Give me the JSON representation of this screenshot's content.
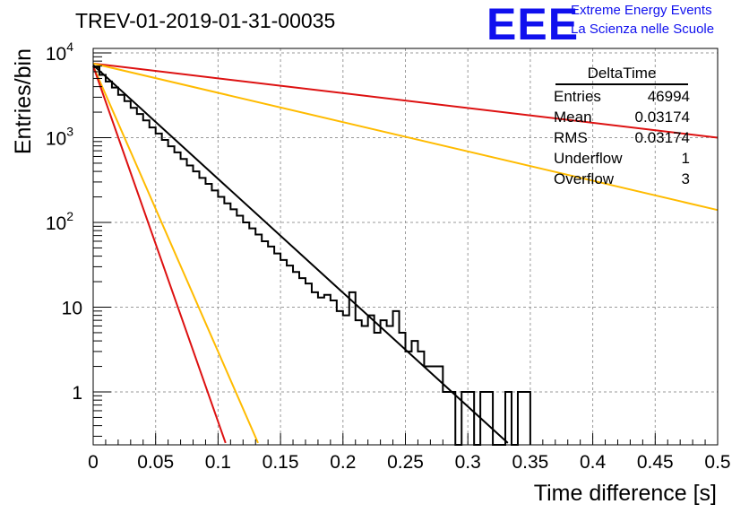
{
  "chart_data": {
    "type": "histogram",
    "title": "TREV-01-2019-01-31-00035",
    "xlabel": "Time difference [s]",
    "ylabel": "Entries/bin",
    "xlim": [
      0,
      0.5
    ],
    "ylim": [
      0.25,
      12000
    ],
    "yscale": "log",
    "grid": true,
    "legend": "none",
    "x_ticks": [
      "0",
      "0.05",
      "0.1",
      "0.15",
      "0.2",
      "0.25",
      "0.3",
      "0.35",
      "0.4",
      "0.45",
      "0.5"
    ],
    "y_ticks": [
      {
        "value": 1,
        "base": "1",
        "exp": ""
      },
      {
        "value": 10,
        "base": "10",
        "exp": ""
      },
      {
        "value": 100,
        "base": "10",
        "exp": "2"
      },
      {
        "value": 1000,
        "base": "10",
        "exp": "3"
      },
      {
        "value": 10000,
        "base": "10",
        "exp": "4"
      }
    ],
    "histogram": {
      "color": "#000000",
      "bin_width": 0.005,
      "bins": [
        [
          0.0,
          6800
        ],
        [
          0.005,
          5500
        ],
        [
          0.01,
          4600
        ],
        [
          0.015,
          3900
        ],
        [
          0.02,
          3200
        ],
        [
          0.025,
          2700
        ],
        [
          0.03,
          2250
        ],
        [
          0.035,
          1900
        ],
        [
          0.04,
          1600
        ],
        [
          0.045,
          1320
        ],
        [
          0.05,
          1120
        ],
        [
          0.055,
          940
        ],
        [
          0.06,
          790
        ],
        [
          0.065,
          670
        ],
        [
          0.07,
          560
        ],
        [
          0.075,
          470
        ],
        [
          0.08,
          400
        ],
        [
          0.085,
          335
        ],
        [
          0.09,
          285
        ],
        [
          0.095,
          238
        ],
        [
          0.1,
          200
        ],
        [
          0.105,
          168
        ],
        [
          0.11,
          143
        ],
        [
          0.115,
          120
        ],
        [
          0.12,
          100
        ],
        [
          0.125,
          85
        ],
        [
          0.13,
          72
        ],
        [
          0.135,
          60
        ],
        [
          0.14,
          52
        ],
        [
          0.145,
          43
        ],
        [
          0.15,
          36
        ],
        [
          0.155,
          31
        ],
        [
          0.16,
          26
        ],
        [
          0.165,
          22
        ],
        [
          0.17,
          19
        ],
        [
          0.175,
          15
        ],
        [
          0.18,
          13
        ],
        [
          0.185,
          14
        ],
        [
          0.19,
          12
        ],
        [
          0.195,
          9
        ],
        [
          0.2,
          8
        ],
        [
          0.205,
          15
        ],
        [
          0.21,
          7
        ],
        [
          0.215,
          6
        ],
        [
          0.22,
          8
        ],
        [
          0.225,
          5
        ],
        [
          0.23,
          7
        ],
        [
          0.235,
          6
        ],
        [
          0.24,
          9
        ],
        [
          0.245,
          5
        ],
        [
          0.25,
          3
        ],
        [
          0.255,
          4
        ],
        [
          0.26,
          3
        ],
        [
          0.265,
          2
        ],
        [
          0.27,
          2
        ],
        [
          0.275,
          2
        ],
        [
          0.28,
          1
        ],
        [
          0.285,
          1
        ],
        [
          0.29,
          0
        ],
        [
          0.295,
          1
        ],
        [
          0.3,
          1
        ],
        [
          0.305,
          0
        ],
        [
          0.31,
          1
        ],
        [
          0.315,
          1
        ],
        [
          0.32,
          0
        ],
        [
          0.325,
          0
        ],
        [
          0.33,
          1
        ],
        [
          0.335,
          0
        ],
        [
          0.34,
          1
        ],
        [
          0.345,
          1
        ]
      ]
    },
    "curves": [
      {
        "color": "#000000",
        "x0": 0,
        "y0": 7200,
        "x1": 0.332,
        "y1": 0.25
      },
      {
        "color": "#dd1111",
        "x0": 0,
        "y0": 7500,
        "x1": 0.5,
        "y1": 1000
      },
      {
        "color": "#ffbb00",
        "x0": 0,
        "y0": 7500,
        "x1": 0.5,
        "y1": 140
      },
      {
        "color": "#ffbb00",
        "x0": 0,
        "y0": 7000,
        "x1": 0.132,
        "y1": 0.25
      },
      {
        "color": "#dd1111",
        "x0": 0,
        "y0": 7000,
        "x1": 0.106,
        "y1": 0.25
      }
    ],
    "stats_box": {
      "title": "DeltaTime",
      "rows": [
        {
          "label": "Entries",
          "value": "46994"
        },
        {
          "label": "Mean",
          "value": "0.03174"
        },
        {
          "label": "RMS",
          "value": "0.03174"
        },
        {
          "label": "Underflow",
          "value": "1"
        },
        {
          "label": "Overflow",
          "value": "3"
        }
      ]
    }
  },
  "logo": {
    "text": "EEE",
    "line1": "Extreme Energy Events",
    "line2": "La Scienza nelle Scuole",
    "color": "#1010ee"
  }
}
